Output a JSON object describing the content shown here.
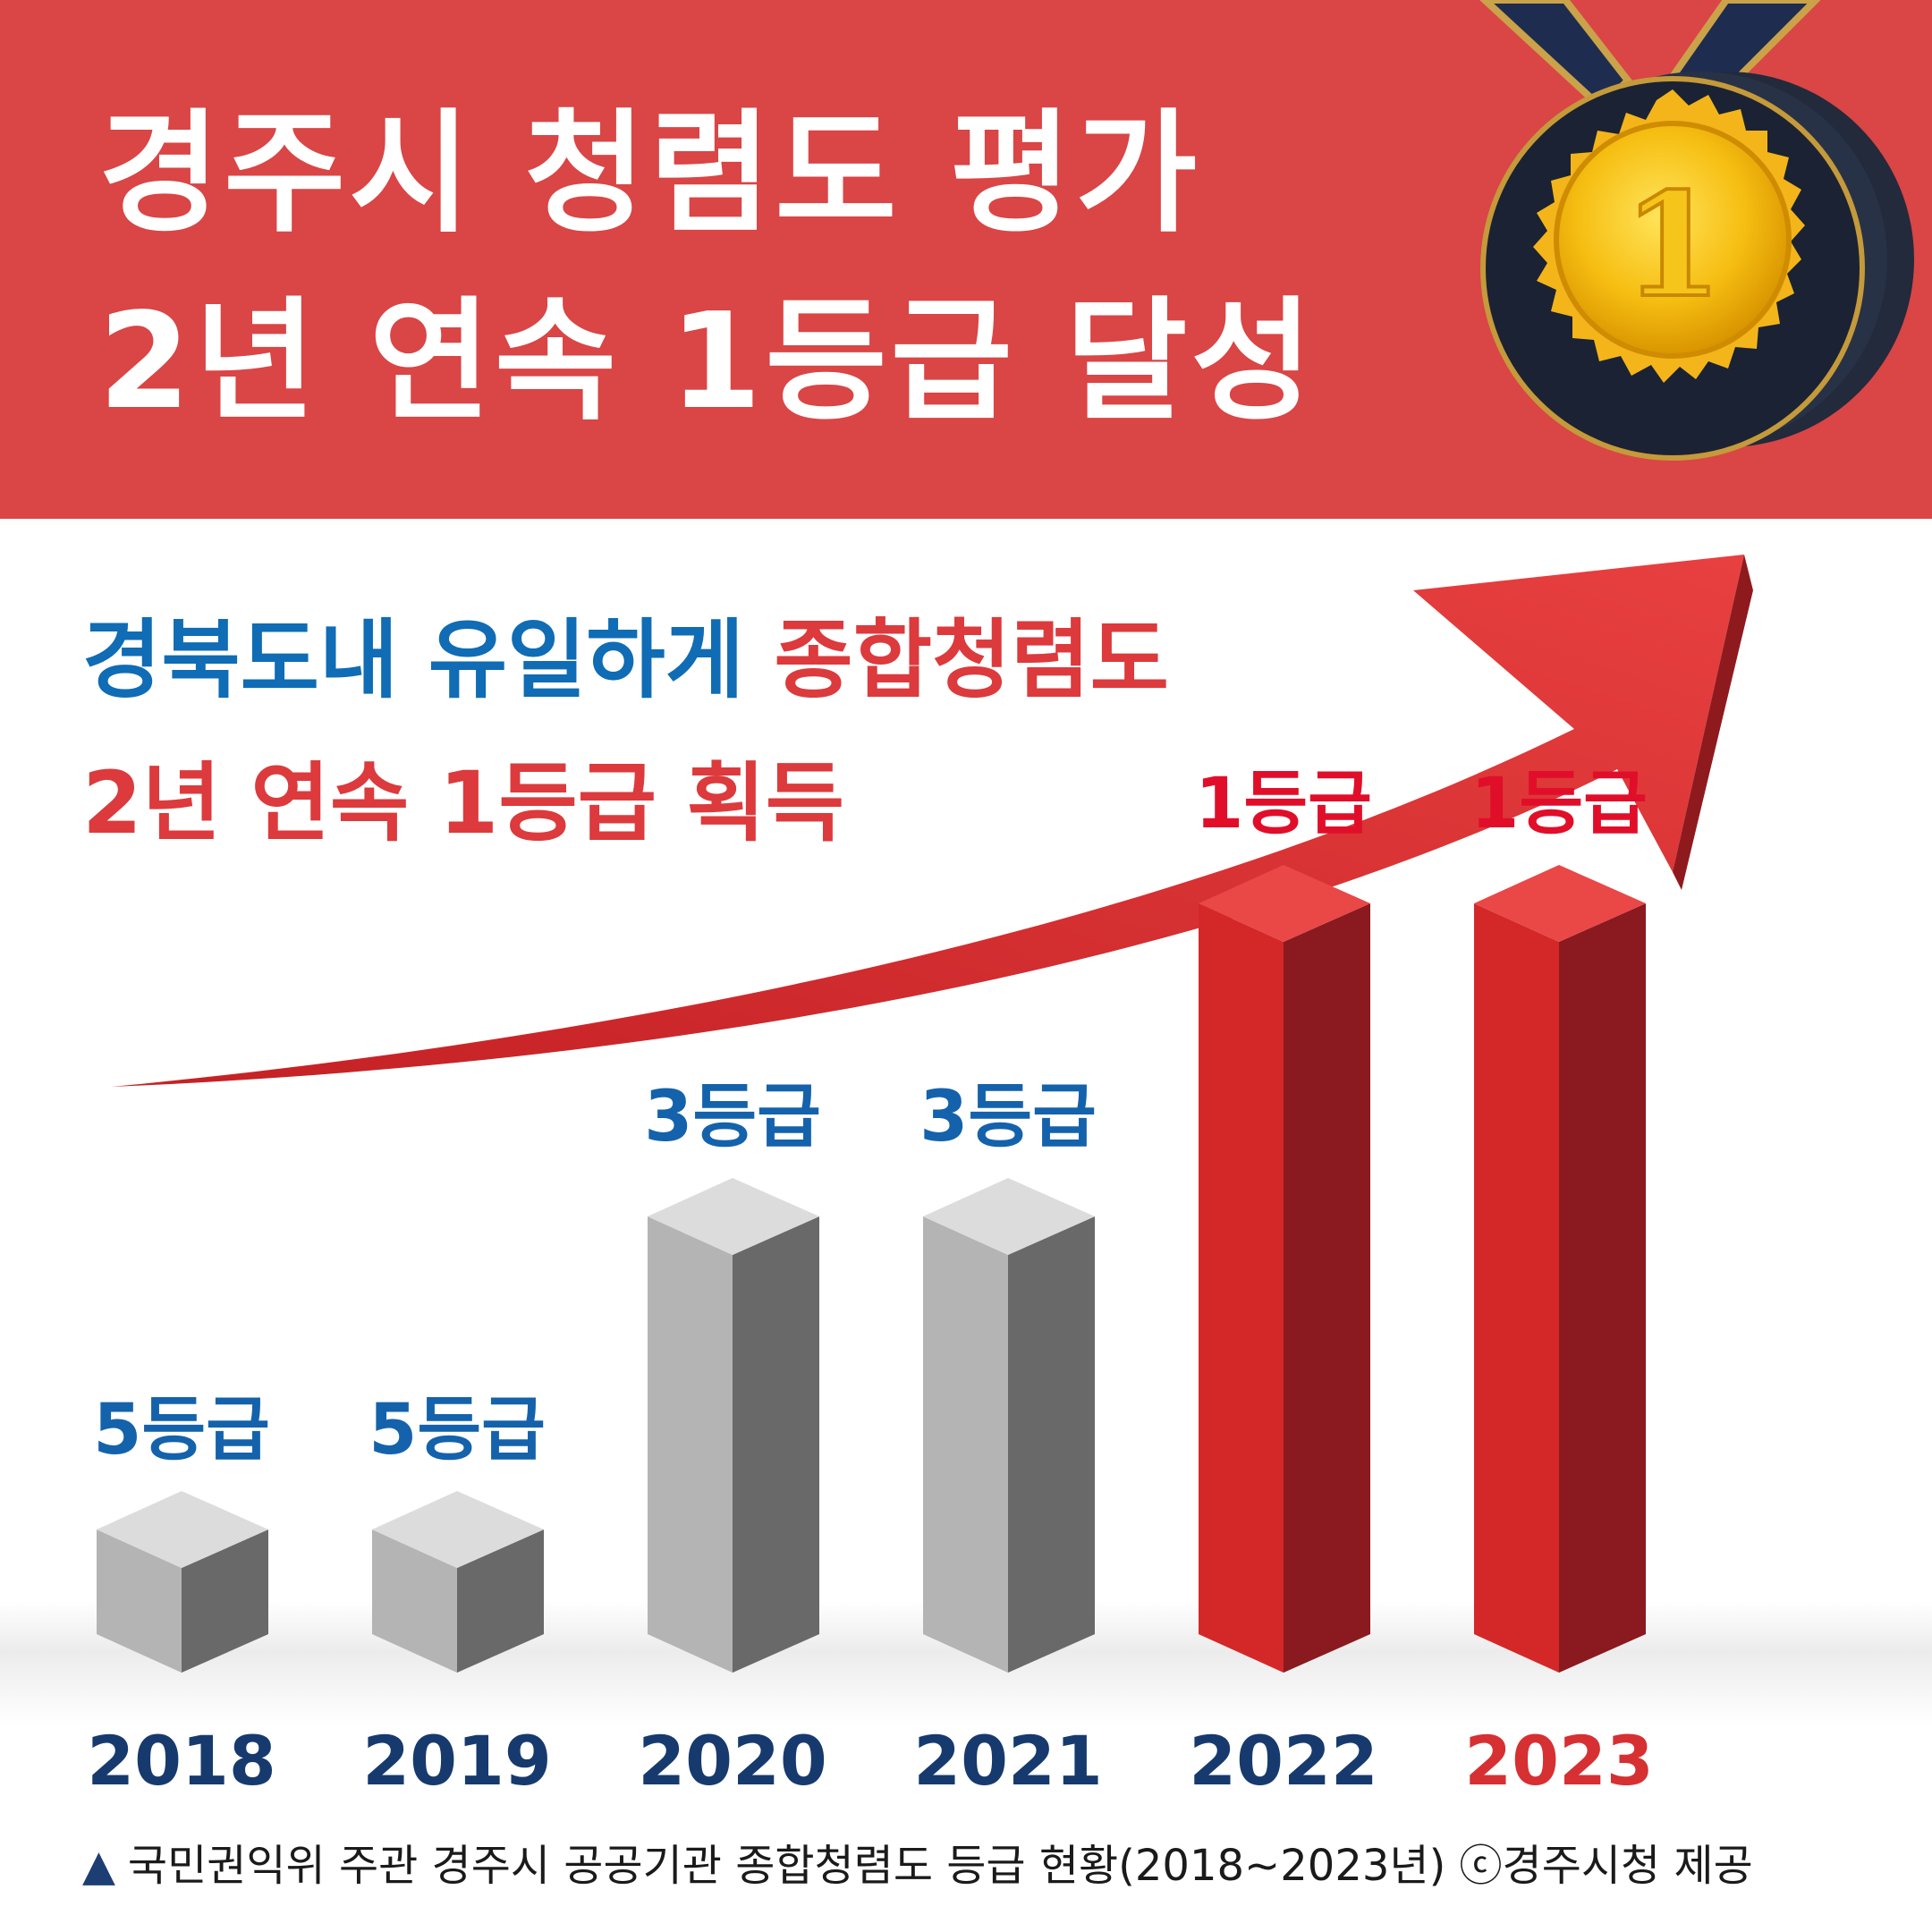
{
  "header": {
    "title_line1": "경주시 청렴도 평가",
    "title_line2": "2년 연속 1등급 달성",
    "medal_label": "1"
  },
  "subtitle": {
    "line1_blue": "경북도내 유일하게 ",
    "line1_red": "종합청렴도",
    "line2": "2년 연속 1등급 획득"
  },
  "chart_data": {
    "type": "bar",
    "categories": [
      "2018",
      "2019",
      "2020",
      "2021",
      "2022",
      "2023"
    ],
    "values": [
      5,
      5,
      3,
      3,
      1,
      1
    ],
    "value_labels": [
      "5등급",
      "5등급",
      "3등급",
      "3등급",
      "1등급",
      "1등급"
    ],
    "value_note": "grade (등급); lower number = better, so bar height increases as grade number decreases",
    "highlight": [
      false,
      false,
      false,
      false,
      true,
      true
    ],
    "colors": {
      "grey_front": "#b4b4b4",
      "grey_side": "#696969",
      "grey_top": "#dcdcdc",
      "red_front": "#d42828",
      "red_side": "#8a1a1f",
      "red_top": "#ea4747",
      "label_blue": "#1462ac",
      "label_red": "#e10e2a",
      "year_navy": "#173a6e",
      "year_red": "#d63033",
      "arrow": "#e03a3a"
    }
  },
  "footer": {
    "triangle": "▲",
    "caption": "국민권익위 주관 경주시 공공기관 종합청렴도 등급 현황(2018~2023년) ⓒ경주시청 제공"
  }
}
